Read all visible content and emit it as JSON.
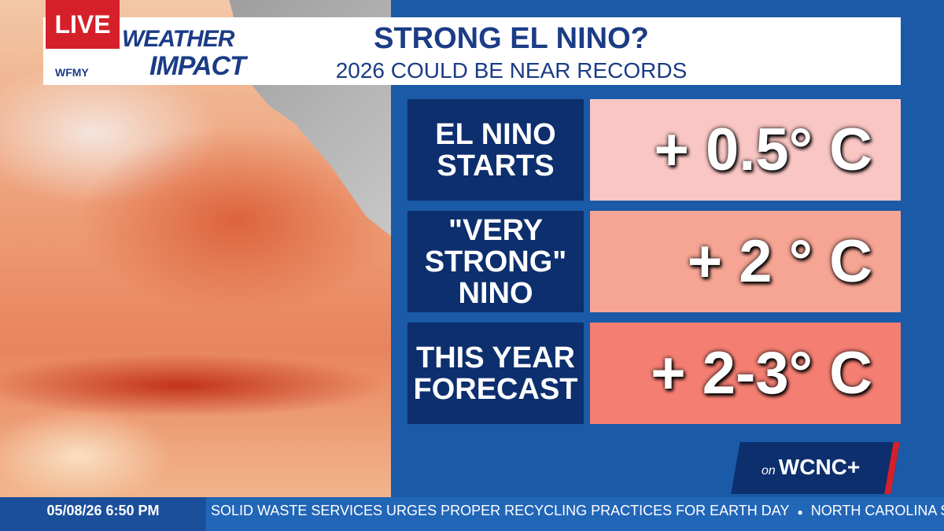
{
  "header": {
    "live": "LIVE",
    "station": "WFMY",
    "brand_top": "WEATHER",
    "brand_bottom": "IMPACT",
    "title": "STRONG EL NINO?",
    "subtitle": "2026 COULD BE NEAR RECORDS"
  },
  "rows": [
    {
      "label": [
        "EL NINO",
        "STARTS"
      ],
      "value": "+ 0.5° C"
    },
    {
      "label": [
        "\"VERY",
        "STRONG\"",
        "NINO"
      ],
      "value": "+ 2 ° C"
    },
    {
      "label": [
        "THIS YEAR",
        "FORECAST"
      ],
      "value": "+ 2-3° C"
    }
  ],
  "badge": {
    "prefix": "on",
    "name": "WCNC+"
  },
  "ticker": {
    "time": "05/08/26 6:50 PM",
    "items": [
      "SOLID WASTE SERVICES URGES PROPER RECYCLING PRACTICES FOR EARTH DAY",
      "NORTH CAROLINA SHIFTING T"
    ]
  }
}
